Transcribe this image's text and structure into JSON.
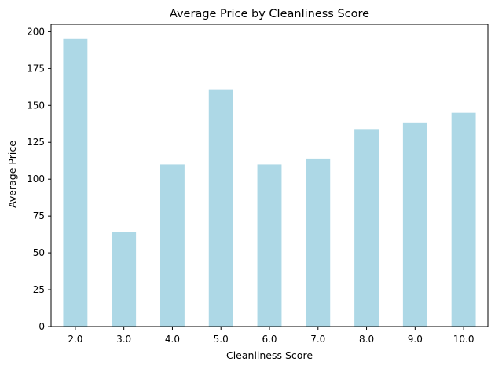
{
  "chart_data": {
    "type": "bar",
    "title": "Average Price by Cleanliness Score",
    "xlabel": "Cleanliness Score",
    "ylabel": "Average Price",
    "categories": [
      "2.0",
      "3.0",
      "4.0",
      "5.0",
      "6.0",
      "7.0",
      "8.0",
      "9.0",
      "10.0"
    ],
    "values": [
      195,
      64,
      110,
      161,
      110,
      114,
      134,
      138,
      145
    ],
    "ylim": [
      0,
      205
    ],
    "yticks": [
      0,
      25,
      50,
      75,
      100,
      125,
      150,
      175,
      200
    ],
    "bar_color": "#add8e6",
    "grid": false,
    "legend": "none"
  }
}
